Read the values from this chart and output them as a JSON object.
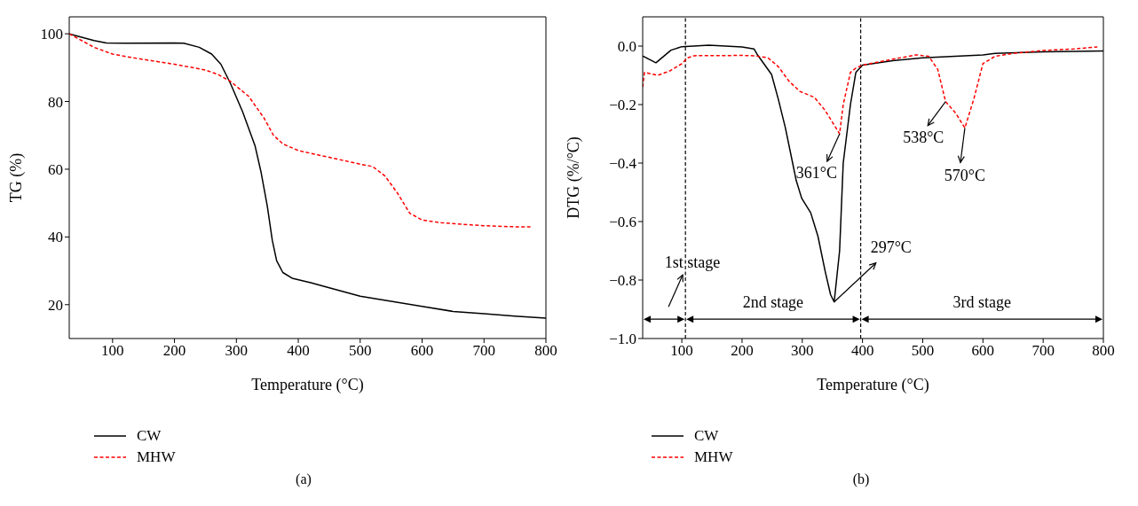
{
  "chart_data": [
    {
      "type": "line",
      "title": "(a)",
      "xlabel": "Temperature (°C)",
      "ylabel": "TG (%)",
      "xlim": [
        30,
        800
      ],
      "ylim": [
        10,
        105
      ],
      "xticks": [
        100,
        200,
        300,
        400,
        500,
        600,
        700,
        800
      ],
      "yticks": [
        20,
        40,
        60,
        80,
        100
      ],
      "grid": false,
      "legend": "bottom left",
      "marker": "none",
      "series": [
        {
          "name": "CW",
          "color": "#000000",
          "line_style": "solid",
          "x": [
            30,
            50,
            70,
            90,
            120,
            200,
            215,
            240,
            260,
            275,
            290,
            310,
            330,
            340,
            350,
            358,
            365,
            375,
            390,
            420,
            450,
            500,
            550,
            600,
            650,
            700,
            750,
            800
          ],
          "values": [
            100,
            99,
            98,
            97.3,
            97.2,
            97.3,
            97.2,
            96,
            94,
            91,
            85.5,
            77,
            67,
            59,
            49,
            39,
            33,
            29.5,
            27.8,
            26.5,
            25,
            22.5,
            21,
            19.5,
            18,
            17.3,
            16.6,
            16
          ]
        },
        {
          "name": "MHW",
          "color": "#ff0000",
          "line_style": "dashed",
          "x": [
            30,
            50,
            70,
            100,
            130,
            200,
            250,
            270,
            290,
            320,
            345,
            360,
            375,
            400,
            450,
            500,
            520,
            540,
            560,
            580,
            600,
            630,
            700,
            750,
            775
          ],
          "values": [
            100,
            98,
            96,
            94,
            93,
            91,
            89.3,
            88,
            86,
            81.5,
            75,
            70,
            67.5,
            65.5,
            63.5,
            61.5,
            60.8,
            58,
            53,
            47,
            45,
            44.2,
            43.3,
            43,
            43
          ]
        }
      ]
    },
    {
      "type": "line",
      "title": "(b)",
      "xlabel": "Temperature (°C)",
      "ylabel": "DTG (%/°C)",
      "xlim": [
        35,
        800
      ],
      "ylim": [
        -1,
        0.1
      ],
      "xticks": [
        100,
        200,
        300,
        400,
        500,
        600,
        700,
        800
      ],
      "yticks": [
        {
          "value": -1,
          "label": "−1.0"
        },
        {
          "value": -0.8,
          "label": "−0.8"
        },
        {
          "value": -0.6,
          "label": "−0.6"
        },
        {
          "value": -0.4,
          "label": "−0.4"
        },
        {
          "value": -0.2,
          "label": "−0.2"
        },
        {
          "value": 0,
          "label": "0.0"
        }
      ],
      "grid": false,
      "legend": "bottom left",
      "marker": "none",
      "series": [
        {
          "name": "CW",
          "color": "#000000",
          "line_style": "solid",
          "x": [
            35,
            57,
            82,
            100,
            145,
            200,
            220,
            225,
            249,
            260,
            272,
            284,
            290,
            299,
            314,
            326,
            338,
            347,
            353,
            362,
            368,
            380,
            389,
            400,
            450,
            500,
            600,
            620,
            700,
            800
          ],
          "values": [
            -0.034,
            -0.057,
            -0.014,
            -0.002,
            0.003,
            -0.003,
            -0.01,
            -0.028,
            -0.097,
            -0.18,
            -0.28,
            -0.4,
            -0.46,
            -0.52,
            -0.57,
            -0.65,
            -0.77,
            -0.85,
            -0.875,
            -0.7,
            -0.4,
            -0.2,
            -0.09,
            -0.065,
            -0.05,
            -0.04,
            -0.03,
            -0.025,
            -0.02,
            -0.017
          ]
        },
        {
          "name": "MHW",
          "color": "#ff0000",
          "line_style": "dashed",
          "x": [
            35,
            38,
            60,
            80,
            100,
            110,
            120,
            200,
            220,
            243,
            260,
            278,
            296,
            320,
            338,
            362,
            368,
            380,
            389,
            400,
            450,
            490,
            510,
            525,
            538,
            555,
            570,
            585,
            600,
            620,
            650,
            700,
            750,
            790
          ],
          "values": [
            -0.14,
            -0.09,
            -0.1,
            -0.085,
            -0.06,
            -0.04,
            -0.033,
            -0.032,
            -0.033,
            -0.04,
            -0.07,
            -0.12,
            -0.155,
            -0.175,
            -0.22,
            -0.3,
            -0.2,
            -0.09,
            -0.075,
            -0.065,
            -0.045,
            -0.03,
            -0.035,
            -0.08,
            -0.19,
            -0.23,
            -0.28,
            -0.18,
            -0.06,
            -0.035,
            -0.025,
            -0.015,
            -0.01,
            -0.003
          ]
        }
      ],
      "ref_lines": [
        {
          "axis": "x",
          "value": 106,
          "color": "#000000",
          "line_style": "dashed"
        },
        {
          "axis": "x",
          "value": 397,
          "color": "#000000",
          "line_style": "dashed"
        }
      ],
      "annotations": [
        {
          "text": "361°C",
          "x": 362,
          "y": -0.3
        },
        {
          "text": "538°C",
          "x": 538,
          "y": -0.19
        },
        {
          "text": "570°C",
          "x": 570,
          "y": -0.28
        },
        {
          "text": "297°C",
          "x": 353,
          "y": -0.875
        },
        "1st stage",
        "2nd stage",
        "3rd stage"
      ]
    }
  ]
}
